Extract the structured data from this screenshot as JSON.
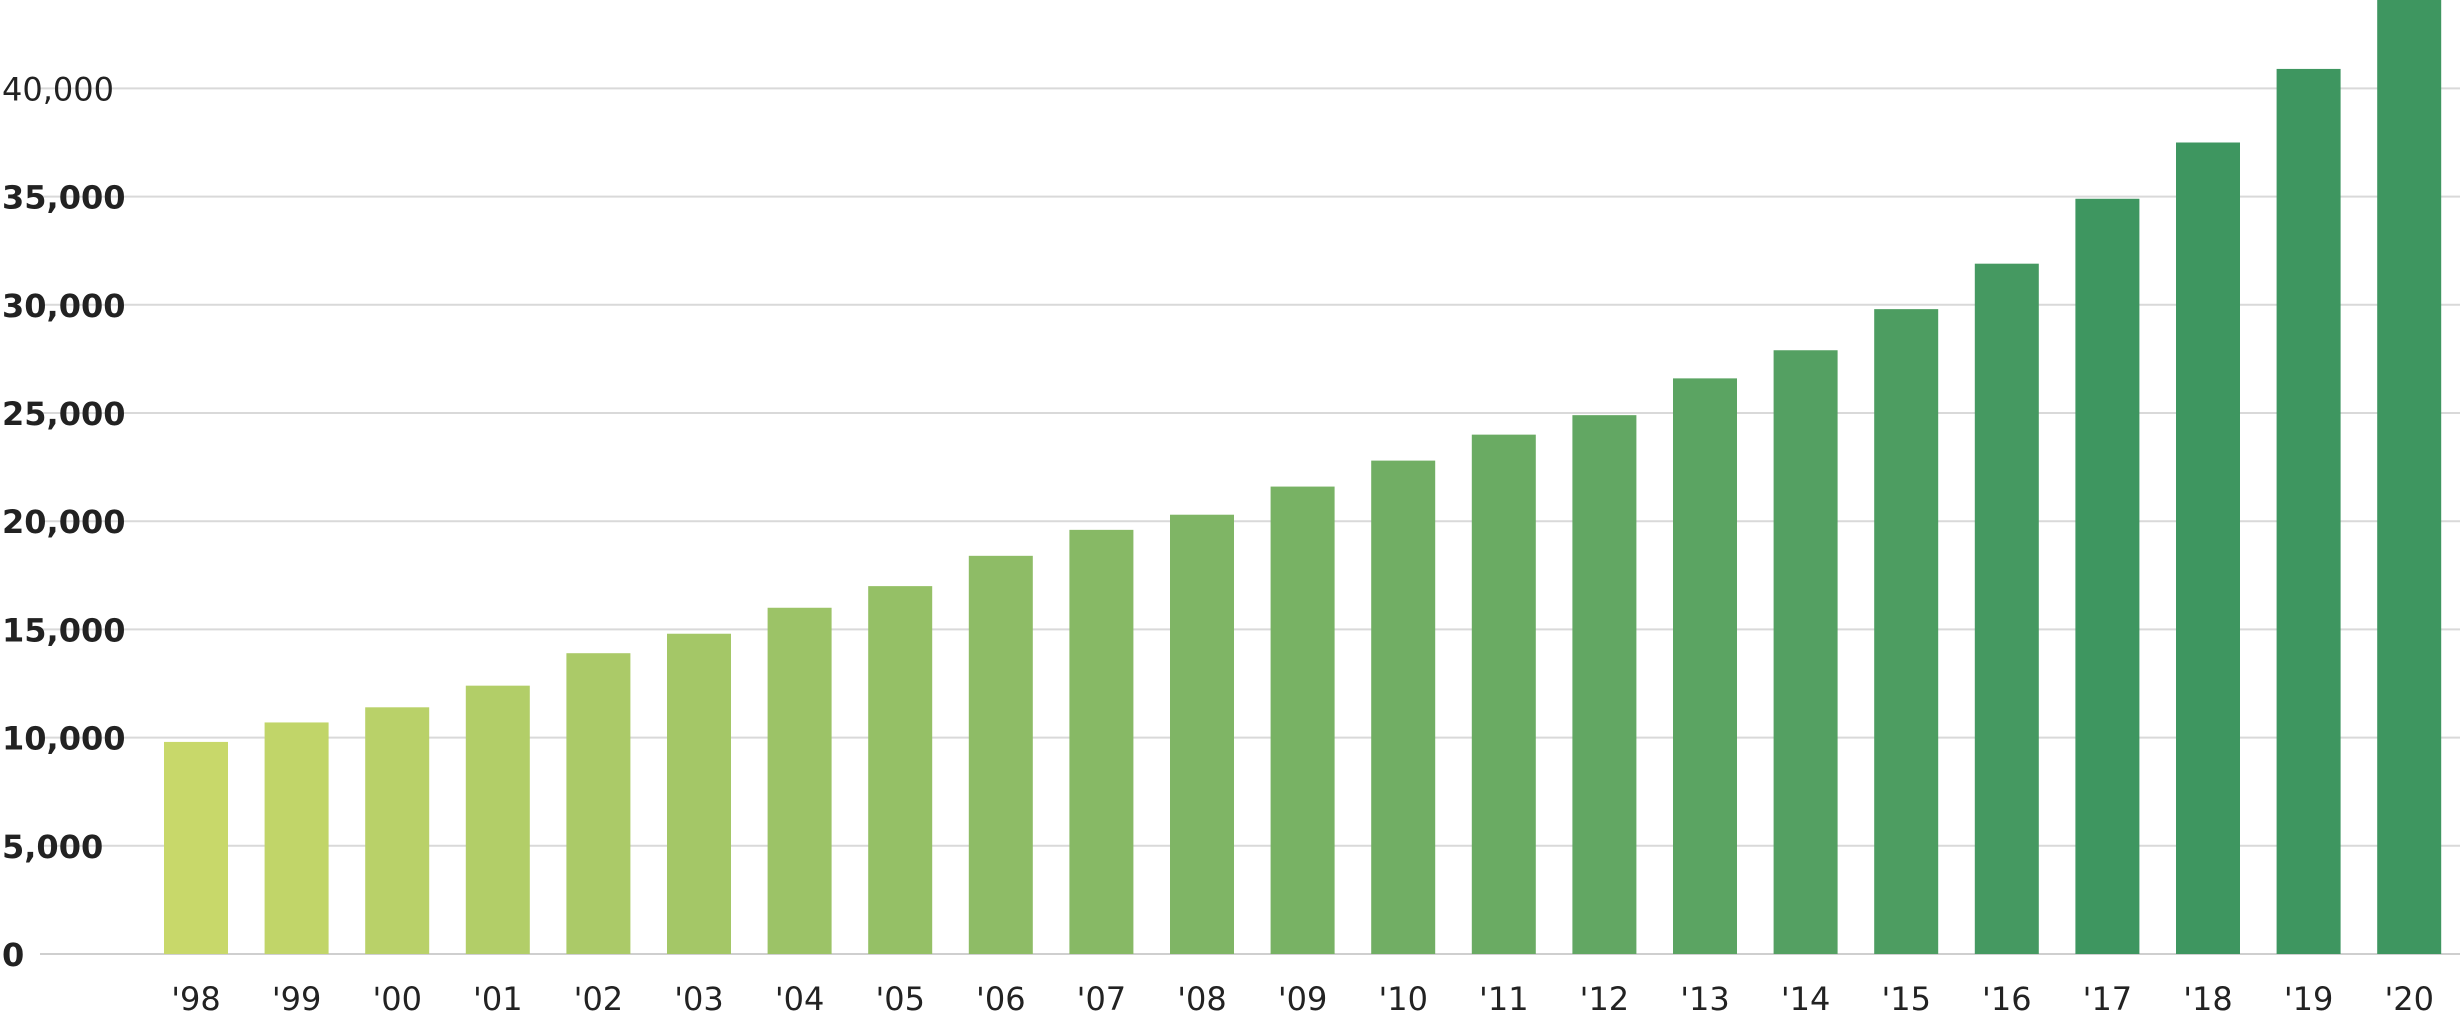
{
  "colors": {
    "start": "#c8d86a",
    "end": "#3e9660",
    "grid": "#d9d9d9",
    "text": "#222222"
  },
  "chart_data": {
    "type": "bar",
    "title": "",
    "xlabel": "",
    "ylabel": "",
    "ylim": [
      0,
      44000
    ],
    "yticks": [
      0,
      5000,
      10000,
      15000,
      20000,
      25000,
      30000,
      35000,
      40000
    ],
    "ytick_labels": [
      "0",
      "5,000",
      "10,000",
      "15,000",
      "20,000",
      "25,000",
      "30,000",
      "35,000",
      "40,000"
    ],
    "grid": true,
    "legend": "none",
    "categories": [
      "'98",
      "'99",
      "'00",
      "'01",
      "'02",
      "'03",
      "'04",
      "'05",
      "'06",
      "'07",
      "'08",
      "'09",
      "'10",
      "'11",
      "'12",
      "'13",
      "'14",
      "'15",
      "'16",
      "'17",
      "'18",
      "'19",
      "'20"
    ],
    "values": [
      9800,
      10700,
      11400,
      12400,
      13900,
      14800,
      16000,
      17000,
      18400,
      19600,
      20300,
      21600,
      22800,
      24000,
      24900,
      26600,
      27900,
      29800,
      31900,
      34900,
      37500,
      40900,
      44500
    ]
  }
}
